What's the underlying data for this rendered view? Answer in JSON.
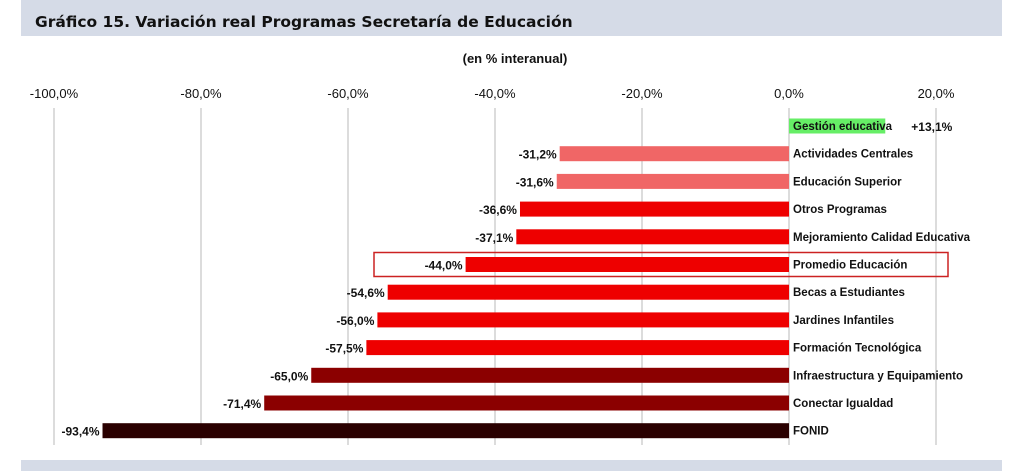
{
  "header": {
    "title": "Gráfico 15. Variación real Programas Secretaría de Educación"
  },
  "colors": {
    "header_band": "#d5dbe7",
    "positive": "#66ee66",
    "light_red": "#f06666",
    "red": "#ee0000",
    "dark_red": "#8b0000",
    "darkest": "#2a0000",
    "highlight_border": "#cc2222"
  },
  "chart_data": {
    "type": "bar",
    "orientation": "horizontal",
    "subtitle": "(en % interanual)",
    "xlim": [
      -100,
      20
    ],
    "xticks": [
      "-100,0%",
      "-80,0%",
      "-60,0%",
      "-40,0%",
      "-20,0%",
      "0,0%",
      "20,0%"
    ],
    "xtick_values": [
      -100,
      -80,
      -60,
      -40,
      -20,
      0,
      20
    ],
    "grid": "vertical",
    "highlighted_category": "Promedio Educación",
    "categories": [
      "Gestión educativa",
      "Actividades Centrales",
      "Educación Superior",
      "Otros Programas",
      "Mejoramiento Calidad Educativa",
      "Promedio Educación",
      "Becas a Estudiantes",
      "Jardines Infantiles",
      "Formación Tecnológica",
      "Infraestructura y Equipamiento",
      "Conectar Igualdad",
      "FONID"
    ],
    "values": [
      13.1,
      -31.2,
      -31.6,
      -36.6,
      -37.1,
      -44.0,
      -54.6,
      -56.0,
      -57.5,
      -65.0,
      -71.4,
      -93.4
    ],
    "value_labels": [
      "+13,1%",
      "-31,2%",
      "-31,6%",
      "-36,6%",
      "-37,1%",
      "-44,0%",
      "-54,6%",
      "-56,0%",
      "-57,5%",
      "-65,0%",
      "-71,4%",
      "-93,4%"
    ],
    "bar_colors": [
      "#66ee66",
      "#f06666",
      "#f06666",
      "#ee0000",
      "#ee0000",
      "#ee0000",
      "#ee0000",
      "#ee0000",
      "#ee0000",
      "#8b0000",
      "#8b0000",
      "#2a0000"
    ]
  }
}
